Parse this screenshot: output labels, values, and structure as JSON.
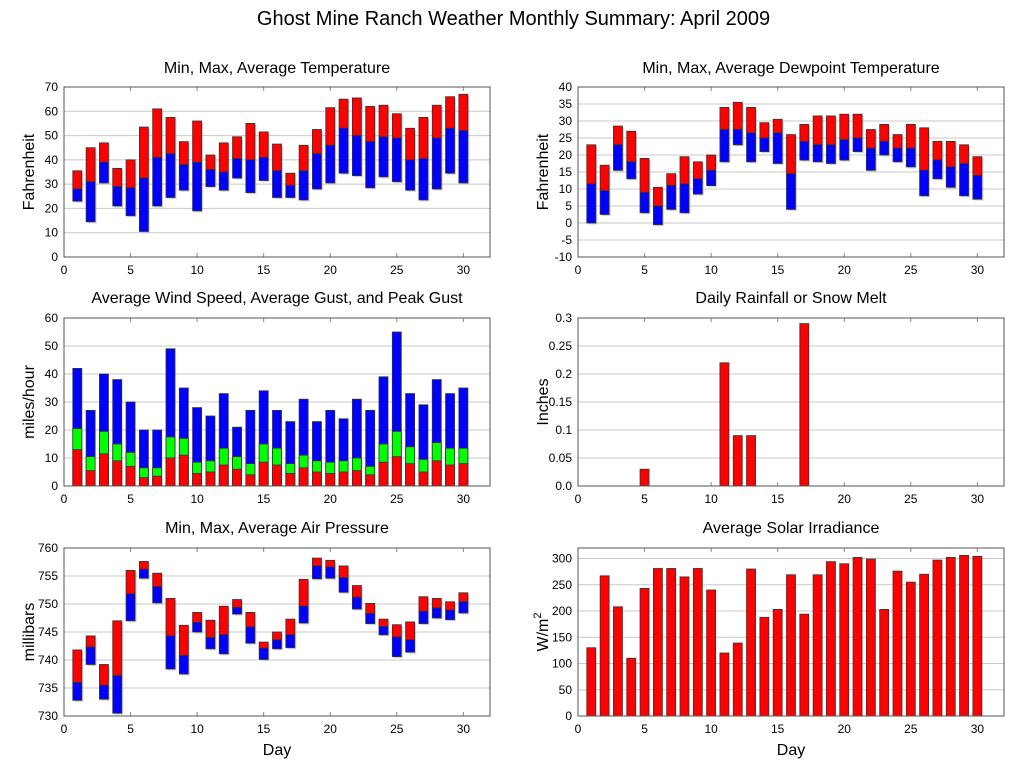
{
  "title": "Ghost Mine Ranch Weather Monthly Summary: April 2009",
  "colors": {
    "max": "#ff0000",
    "avg_low": "#0000ff",
    "mid": "#00ff00",
    "bar": "#ff0000"
  },
  "chart_data": [
    {
      "id": "temperature",
      "type": "bar",
      "subtype": "floating-range",
      "title": "Min, Max, Average Temperature",
      "xlabel": "",
      "ylabel": "Fahrenheit",
      "xlim": [
        0,
        32
      ],
      "ylim": [
        0,
        70
      ],
      "xticks": [
        0,
        5,
        10,
        15,
        20,
        25,
        30
      ],
      "yticks": [
        0,
        10,
        20,
        30,
        40,
        50,
        60,
        70
      ],
      "grid": true,
      "x": [
        1,
        2,
        3,
        4,
        5,
        6,
        7,
        8,
        9,
        10,
        11,
        12,
        13,
        14,
        15,
        16,
        17,
        18,
        19,
        20,
        21,
        22,
        23,
        24,
        25,
        26,
        27,
        28,
        29,
        30
      ],
      "series": [
        {
          "name": "Min",
          "values": [
            23,
            14.5,
            30.5,
            21,
            17,
            10.5,
            21,
            24.5,
            27.5,
            19,
            29,
            27.5,
            32.5,
            26.5,
            31.5,
            24.5,
            24.5,
            23.5,
            28,
            30.5,
            34.5,
            33.5,
            28.5,
            33,
            31,
            27.5,
            23.5,
            28,
            34.5,
            30.5
          ]
        },
        {
          "name": "Average",
          "values": [
            28,
            31,
            39,
            29,
            28.5,
            32.5,
            41,
            42.5,
            38,
            39,
            36,
            35,
            40.5,
            40,
            41,
            35.5,
            29.5,
            35.5,
            42.5,
            46,
            53,
            50,
            47.5,
            49.5,
            49,
            40,
            40.5,
            49,
            53,
            52
          ]
        },
        {
          "name": "Max",
          "values": [
            35.5,
            45,
            47,
            36.5,
            40,
            53.5,
            61,
            57.5,
            47.5,
            56,
            42,
            47,
            49.5,
            55,
            51.5,
            46.5,
            34.5,
            46,
            52.5,
            61.5,
            65,
            65.5,
            62,
            62.5,
            59,
            53,
            57.5,
            62.5,
            66,
            67
          ]
        }
      ]
    },
    {
      "id": "dewpoint",
      "type": "bar",
      "subtype": "floating-range",
      "title": "Min, Max, Average Dewpoint Temperature",
      "xlabel": "",
      "ylabel": "Fahrenheit",
      "xlim": [
        0,
        32
      ],
      "ylim": [
        -10,
        40
      ],
      "xticks": [
        0,
        5,
        10,
        15,
        20,
        25,
        30
      ],
      "yticks": [
        -10,
        -5,
        0,
        5,
        10,
        15,
        20,
        25,
        30,
        35,
        40
      ],
      "grid": true,
      "x": [
        1,
        2,
        3,
        4,
        5,
        6,
        7,
        8,
        9,
        10,
        11,
        12,
        13,
        14,
        15,
        16,
        17,
        18,
        19,
        20,
        21,
        22,
        23,
        24,
        25,
        26,
        27,
        28,
        29,
        30
      ],
      "series": [
        {
          "name": "Min",
          "values": [
            0,
            2.5,
            15.5,
            13,
            3,
            -0.5,
            4,
            3,
            8.5,
            11,
            18,
            23,
            18,
            21,
            17.5,
            4,
            18.5,
            18,
            17.5,
            18.5,
            21,
            15.5,
            20,
            18,
            16.5,
            8,
            13,
            10.5,
            8,
            7
          ]
        },
        {
          "name": "Average",
          "values": [
            11.5,
            9.5,
            23,
            18,
            9,
            5,
            11,
            11.5,
            13,
            15.5,
            27.5,
            27.5,
            26.5,
            25,
            26.5,
            14.5,
            24,
            23,
            23,
            24.5,
            25,
            22,
            24,
            22,
            22,
            15.5,
            18.5,
            16.5,
            17.5,
            14
          ]
        },
        {
          "name": "Max",
          "values": [
            23,
            17,
            28.5,
            27,
            19,
            10.5,
            14.5,
            19.5,
            18,
            20,
            34,
            35.5,
            34,
            29.5,
            30.5,
            26,
            29,
            31.5,
            31.5,
            32,
            32,
            27.5,
            29,
            26,
            29,
            28,
            24,
            24,
            23,
            19.5
          ]
        }
      ]
    },
    {
      "id": "wind",
      "type": "bar",
      "subtype": "overlaid",
      "title": "Average Wind Speed, Average Gust, and Peak Gust",
      "xlabel": "",
      "ylabel": "miles/hour",
      "xlim": [
        0,
        32
      ],
      "ylim": [
        0,
        60
      ],
      "xticks": [
        0,
        5,
        10,
        15,
        20,
        25,
        30
      ],
      "yticks": [
        0,
        10,
        20,
        30,
        40,
        50,
        60
      ],
      "grid": true,
      "x": [
        1,
        2,
        3,
        4,
        5,
        6,
        7,
        8,
        9,
        10,
        11,
        12,
        13,
        14,
        15,
        16,
        17,
        18,
        19,
        20,
        21,
        22,
        23,
        24,
        25,
        26,
        27,
        28,
        29,
        30
      ],
      "series": [
        {
          "name": "Average Wind Speed",
          "values": [
            13,
            5.5,
            11.5,
            9,
            7,
            3,
            3.5,
            10,
            11,
            4.5,
            5,
            7.5,
            6,
            4,
            8.5,
            7.5,
            4.5,
            6.5,
            5,
            4.5,
            5,
            5.5,
            4,
            8.5,
            10.5,
            8,
            5,
            9,
            7.5,
            8
          ]
        },
        {
          "name": "Average Gust",
          "values": [
            20.5,
            10.5,
            19.5,
            15,
            12,
            6.5,
            6.5,
            17.5,
            17,
            8.5,
            9,
            13.5,
            10.5,
            8,
            15,
            13.5,
            8,
            11,
            9,
            8.5,
            9,
            10,
            7,
            15,
            19.5,
            14,
            9.5,
            15.5,
            13.5,
            13.5
          ]
        },
        {
          "name": "Peak Gust",
          "values": [
            42,
            27,
            40,
            38,
            30,
            20,
            20,
            49,
            35,
            28,
            25,
            33,
            21,
            27,
            34,
            27,
            23,
            31,
            23,
            27,
            24,
            31,
            27,
            39,
            55,
            33,
            29,
            38,
            33,
            35
          ]
        }
      ]
    },
    {
      "id": "rainfall",
      "type": "bar",
      "title": "Daily Rainfall or Snow Melt",
      "xlabel": "",
      "ylabel": "Inches",
      "xlim": [
        0,
        32
      ],
      "ylim": [
        0,
        0.3
      ],
      "xticks": [
        0,
        5,
        10,
        15,
        20,
        25,
        30
      ],
      "yticks": [
        "0.0",
        "0.05",
        "0.1",
        "0.15",
        "0.2",
        "0.25",
        "0.3"
      ],
      "grid": true,
      "x": [
        5,
        11,
        12,
        13,
        17
      ],
      "values": [
        0.03,
        0.22,
        0.09,
        0.09,
        0.29
      ]
    },
    {
      "id": "pressure",
      "type": "bar",
      "subtype": "floating-range",
      "title": "Min, Max, Average Air Pressure",
      "xlabel": "Day",
      "ylabel": "millibars",
      "xlim": [
        0,
        32
      ],
      "ylim": [
        730,
        760
      ],
      "xticks": [
        0,
        5,
        10,
        15,
        20,
        25,
        30
      ],
      "yticks": [
        730,
        735,
        740,
        745,
        750,
        755,
        760
      ],
      "grid": true,
      "x": [
        1,
        2,
        3,
        4,
        5,
        6,
        7,
        8,
        9,
        10,
        11,
        12,
        13,
        14,
        15,
        16,
        17,
        18,
        19,
        20,
        21,
        22,
        23,
        24,
        25,
        26,
        27,
        28,
        29,
        30
      ],
      "series": [
        {
          "name": "Min",
          "values": [
            732.8,
            739.2,
            733,
            730.5,
            747,
            754.6,
            750.2,
            738.4,
            737.5,
            745,
            742,
            741.1,
            748.2,
            743,
            740.1,
            742,
            742.2,
            746.6,
            754.5,
            754.6,
            752.1,
            749.1,
            746.5,
            744.5,
            740.6,
            741.4,
            746.5,
            747.5,
            747.2,
            748.4
          ]
        },
        {
          "name": "Average",
          "values": [
            736,
            742.3,
            735.5,
            737.2,
            751.8,
            756.2,
            753.1,
            744.3,
            740.8,
            746.7,
            744,
            744.5,
            749.4,
            745.9,
            742.1,
            743.6,
            744.5,
            749.6,
            756.8,
            756.6,
            754.7,
            751.2,
            748.3,
            746,
            744.1,
            743.6,
            748.7,
            749.3,
            748.9,
            750.4
          ]
        },
        {
          "name": "Max",
          "values": [
            741.8,
            744.3,
            739.2,
            747,
            756,
            757.6,
            755.5,
            751,
            746.2,
            748.5,
            747.1,
            749.6,
            750.8,
            748.5,
            743.2,
            745,
            747.3,
            754.4,
            758.2,
            757.8,
            756.8,
            753.3,
            750.1,
            747.3,
            746.3,
            746.8,
            751.3,
            751,
            750.4,
            752
          ]
        }
      ]
    },
    {
      "id": "solar",
      "type": "bar",
      "title": "Average Solar Irradiance",
      "xlabel": "Day",
      "ylabel": "W/m",
      "ylabel_sup": "2",
      "xlim": [
        0,
        32
      ],
      "ylim": [
        0,
        320
      ],
      "xticks": [
        0,
        5,
        10,
        15,
        20,
        25,
        30
      ],
      "yticks": [
        0,
        50,
        100,
        150,
        200,
        250,
        300
      ],
      "grid": true,
      "x": [
        1,
        2,
        3,
        4,
        5,
        6,
        7,
        8,
        9,
        10,
        11,
        12,
        13,
        14,
        15,
        16,
        17,
        18,
        19,
        20,
        21,
        22,
        23,
        24,
        25,
        26,
        27,
        28,
        29,
        30
      ],
      "values": [
        130,
        267,
        208,
        110,
        243,
        281,
        281,
        265,
        281,
        240,
        120,
        139,
        280,
        188,
        203,
        269,
        194,
        269,
        294,
        290,
        302,
        299,
        203,
        276,
        255,
        270,
        297,
        302,
        306,
        304
      ]
    }
  ]
}
